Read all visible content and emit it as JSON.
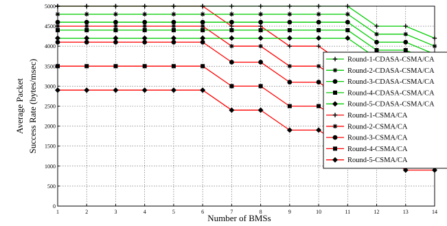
{
  "chart_data": {
    "type": "line",
    "title": "",
    "xlabel": "Number of BMSs",
    "ylabel_lines": [
      "Average Packet",
      "Success Rate (bytes/msec)"
    ],
    "xlim": [
      1,
      14
    ],
    "ylim": [
      0,
      5000
    ],
    "x_ticks": [
      1,
      2,
      3,
      4,
      5,
      6,
      7,
      8,
      9,
      10,
      11,
      12,
      13,
      14
    ],
    "y_ticks": [
      0,
      500,
      1000,
      1500,
      2000,
      2500,
      3000,
      3500,
      4000,
      4500,
      5000
    ],
    "grid": "dotted",
    "legend_placement": "right, overflowing plot",
    "x": [
      1,
      2,
      3,
      4,
      5,
      6,
      7,
      8,
      9,
      10,
      11,
      12,
      13,
      14
    ],
    "series": [
      {
        "name": "Round-1-CDASA-CSMA/CA",
        "color": "#00cc00",
        "marker": "plus",
        "values": [
          5000,
          5000,
          5000,
          5000,
          5000,
          5000,
          5000,
          5000,
          5000,
          5000,
          5000,
          4500,
          4500,
          4200
        ]
      },
      {
        "name": "Round-2-CDASA-CSMA/CA",
        "color": "#00cc00",
        "marker": "star",
        "values": [
          4800,
          4800,
          4800,
          4800,
          4800,
          4800,
          4800,
          4800,
          4800,
          4800,
          4800,
          4300,
          4300,
          4000
        ]
      },
      {
        "name": "Round-3-CDASA-CSMA/CA",
        "color": "#00cc00",
        "marker": "circle",
        "values": [
          4600,
          4600,
          4600,
          4600,
          4600,
          4600,
          4600,
          4600,
          4600,
          4600,
          4600,
          4100,
          4100,
          3800
        ]
      },
      {
        "name": "Round-4-CDASA-CSMA/CA",
        "color": "#00cc00",
        "marker": "square",
        "values": [
          4400,
          4400,
          4400,
          4400,
          4400,
          4400,
          4400,
          4400,
          4400,
          4400,
          4400,
          3900,
          3900,
          3600
        ]
      },
      {
        "name": "Round-5-CDASA-CSMA/CA",
        "color": "#00cc00",
        "marker": "diamond",
        "values": [
          4200,
          4200,
          4200,
          4200,
          4200,
          4200,
          4200,
          4200,
          4200,
          4200,
          4200,
          3700,
          3700,
          3400
        ]
      },
      {
        "name": "Round-1-CSMA/CA",
        "color": "#ff0000",
        "marker": "plus",
        "values": [
          5000,
          5000,
          5000,
          5000,
          5000,
          5000,
          4500,
          4500,
          4000,
          4000,
          3500,
          3500,
          3000,
          3000
        ]
      },
      {
        "name": "Round-2-CSMA/CA",
        "color": "#ff0000",
        "marker": "star",
        "values": [
          4500,
          4500,
          4500,
          4500,
          4500,
          4500,
          4000,
          4000,
          3500,
          3500,
          3000,
          3000,
          2500,
          2500
        ]
      },
      {
        "name": "Round-3-CSMA/CA",
        "color": "#ff0000",
        "marker": "circle",
        "values": [
          4100,
          4100,
          4100,
          4100,
          4100,
          4100,
          3600,
          3600,
          3100,
          3100,
          2600,
          2600,
          2100,
          2100
        ]
      },
      {
        "name": "Round-4-CSMA/CA",
        "color": "#ff0000",
        "marker": "square",
        "values": [
          3500,
          3500,
          3500,
          3500,
          3500,
          3500,
          3000,
          3000,
          2500,
          2500,
          2000,
          2000,
          1500,
          1500
        ]
      },
      {
        "name": "Round-5-CSMA/CA",
        "color": "#ff0000",
        "marker": "diamond",
        "values": [
          2900,
          2900,
          2900,
          2900,
          2900,
          2900,
          2400,
          2400,
          1900,
          1900,
          1400,
          1400,
          900,
          900
        ]
      }
    ]
  }
}
